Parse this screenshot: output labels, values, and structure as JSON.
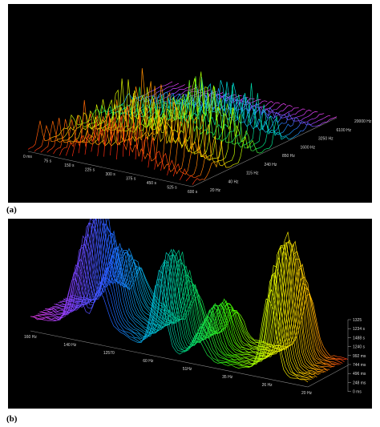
{
  "captions": {
    "a": "(a)",
    "b": "(b)"
  },
  "chart_data": [
    {
      "panel": "a",
      "type": "area",
      "title": "",
      "time_ticks": [
        "0 ms",
        "75 s",
        "150 s",
        "225 s",
        "300 s",
        "375 s",
        "450 s",
        "525 s",
        "600 s"
      ],
      "freq_ticks": [
        "20 Hz",
        "40 Hz",
        "115 Hz",
        "240 Hz",
        "850 Hz",
        "1600 Hz",
        "3250 Hz",
        "6100 Hz",
        "20000 Hz"
      ],
      "peak_heights_relative": [
        0.55,
        0.75,
        0.95,
        0.7,
        0.6,
        0.85,
        1.0,
        0.8,
        0.65,
        0.5,
        0.9,
        0.7,
        0.55,
        0.45,
        0.3,
        0.25,
        0.15,
        0.1
      ],
      "color_map": [
        "#ff2a10",
        "#ff8a00",
        "#ffe600",
        "#9cff00",
        "#00e060",
        "#00d8d8",
        "#2080ff",
        "#a040ff",
        "#ff40ff"
      ]
    },
    {
      "panel": "b",
      "type": "area",
      "title": "",
      "freq_ticks": [
        "160 Hz",
        "140 Hz",
        "12570",
        "60 Hz",
        "51Hz",
        "35 Hz",
        "26 Hz",
        "20 Hz"
      ],
      "time_ticks": [
        "1325",
        "1234 s",
        "1488 s",
        "1240 s",
        "992 ms",
        "744 ms",
        "496 ms",
        "248 ms",
        "0 ms"
      ],
      "ridges": [
        {
          "name": "ridge-1",
          "position": 0.16,
          "height": 0.85
        },
        {
          "name": "ridge-2",
          "position": 0.25,
          "height": 0.55
        },
        {
          "name": "ridge-3",
          "position": 0.46,
          "height": 0.75
        },
        {
          "name": "ridge-4",
          "position": 0.6,
          "height": 0.35
        },
        {
          "name": "ridge-5",
          "position": 0.86,
          "height": 1.0
        }
      ],
      "color_map": [
        "#ff40ff",
        "#8040ff",
        "#2060ff",
        "#00c0e0",
        "#00d070",
        "#40ff00",
        "#e0ff00",
        "#ffc000",
        "#ff3010"
      ]
    }
  ]
}
